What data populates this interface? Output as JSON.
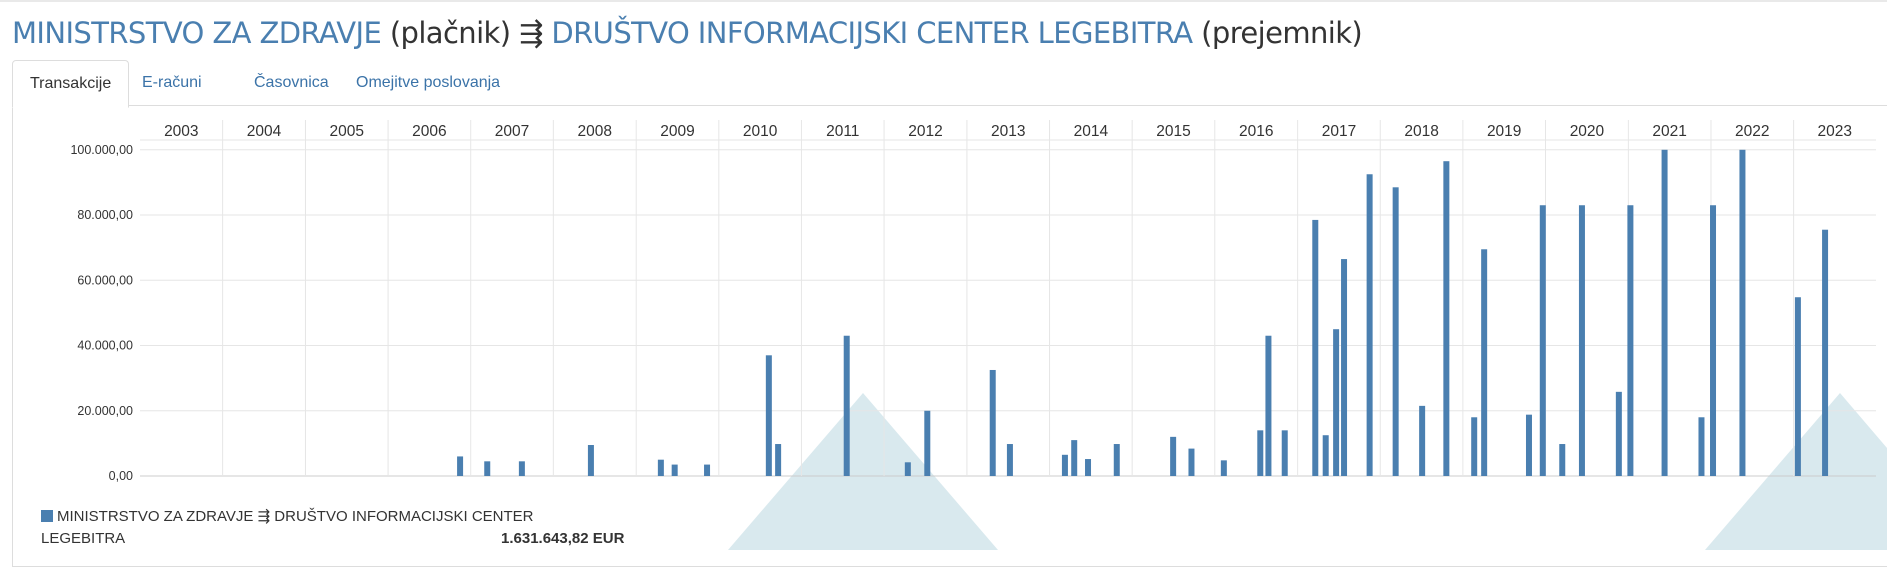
{
  "header": {
    "payer": "MINISTRSTVO ZA ZDRAVJE",
    "payer_role": "(plačnik)",
    "flow_symbol": "⇶",
    "recipient": "DRUŠTVO INFORMACIJSKI CENTER LEGEBITRA",
    "recipient_role": "(prejemnik)"
  },
  "tabs": [
    "Transakcije",
    "E-računi",
    "Časovnica",
    "Omejitve poslovanja"
  ],
  "active_tab": 0,
  "colors": {
    "bar": "#4a7fb0",
    "link": "#3b73a8",
    "deco": "#d9e9ee"
  },
  "legend": {
    "label_line1": "MINISTRSTVO ZA ZDRAVJE ⇶ DRUŠTVO INFORMACIJSKI CENTER",
    "label_line2": "LEGEBITRA",
    "total": "1.631.643,82 EUR"
  },
  "chart_data": {
    "type": "bar",
    "x_axis": "years",
    "year_labels": [
      "2003",
      "2004",
      "2005",
      "2006",
      "2007",
      "2008",
      "2009",
      "2010",
      "2011",
      "2012",
      "2013",
      "2014",
      "2015",
      "2016",
      "2017",
      "2018",
      "2019",
      "2020",
      "2021",
      "2022",
      "2023"
    ],
    "xlim": [
      "2003-01-01",
      "2023-12-31"
    ],
    "ylim": [
      0,
      103000
    ],
    "y_ticks": [
      0,
      20000,
      40000,
      60000,
      80000,
      100000
    ],
    "y_tick_labels": [
      "0,00",
      "20.000,00",
      "40.000,00",
      "60.000,00",
      "80.000,00",
      "100.000,00"
    ],
    "grid": true,
    "legend_position": "bottom-left",
    "points": [
      {
        "date": "2006-11-15",
        "value": 6000
      },
      {
        "date": "2007-03-15",
        "value": 4500
      },
      {
        "date": "2007-08-15",
        "value": 4500
      },
      {
        "date": "2008-06-15",
        "value": 9500
      },
      {
        "date": "2009-04-20",
        "value": 5000
      },
      {
        "date": "2009-06-20",
        "value": 3500
      },
      {
        "date": "2009-11-10",
        "value": 3500
      },
      {
        "date": "2010-08-10",
        "value": 37000
      },
      {
        "date": "2010-09-20",
        "value": 9800
      },
      {
        "date": "2011-07-20",
        "value": 43000
      },
      {
        "date": "2012-04-15",
        "value": 4200
      },
      {
        "date": "2012-07-10",
        "value": 20000
      },
      {
        "date": "2013-04-25",
        "value": 32500
      },
      {
        "date": "2013-07-10",
        "value": 9800
      },
      {
        "date": "2014-03-10",
        "value": 6500
      },
      {
        "date": "2014-04-20",
        "value": 11000
      },
      {
        "date": "2014-06-20",
        "value": 5200
      },
      {
        "date": "2014-10-25",
        "value": 9800
      },
      {
        "date": "2015-07-01",
        "value": 12000
      },
      {
        "date": "2015-09-20",
        "value": 8400
      },
      {
        "date": "2016-02-10",
        "value": 4800
      },
      {
        "date": "2016-07-20",
        "value": 14000
      },
      {
        "date": "2016-08-25",
        "value": 43000
      },
      {
        "date": "2016-11-05",
        "value": 14000
      },
      {
        "date": "2017-03-20",
        "value": 78500
      },
      {
        "date": "2017-05-05",
        "value": 12500
      },
      {
        "date": "2017-06-20",
        "value": 45000
      },
      {
        "date": "2017-07-25",
        "value": 66500
      },
      {
        "date": "2017-11-15",
        "value": 92500
      },
      {
        "date": "2018-03-10",
        "value": 88500
      },
      {
        "date": "2018-07-05",
        "value": 21500
      },
      {
        "date": "2018-10-20",
        "value": 96500
      },
      {
        "date": "2019-02-20",
        "value": 18000
      },
      {
        "date": "2019-04-05",
        "value": 69500
      },
      {
        "date": "2019-10-20",
        "value": 18800
      },
      {
        "date": "2019-12-20",
        "value": 83000
      },
      {
        "date": "2020-03-15",
        "value": 9800
      },
      {
        "date": "2020-06-10",
        "value": 83000
      },
      {
        "date": "2020-11-20",
        "value": 25800
      },
      {
        "date": "2021-01-10",
        "value": 83000
      },
      {
        "date": "2021-06-10",
        "value": 100000
      },
      {
        "date": "2021-11-20",
        "value": 18000
      },
      {
        "date": "2022-01-10",
        "value": 83000
      },
      {
        "date": "2022-05-20",
        "value": 100000
      },
      {
        "date": "2023-01-20",
        "value": 54800
      },
      {
        "date": "2023-05-20",
        "value": 75500
      }
    ]
  }
}
